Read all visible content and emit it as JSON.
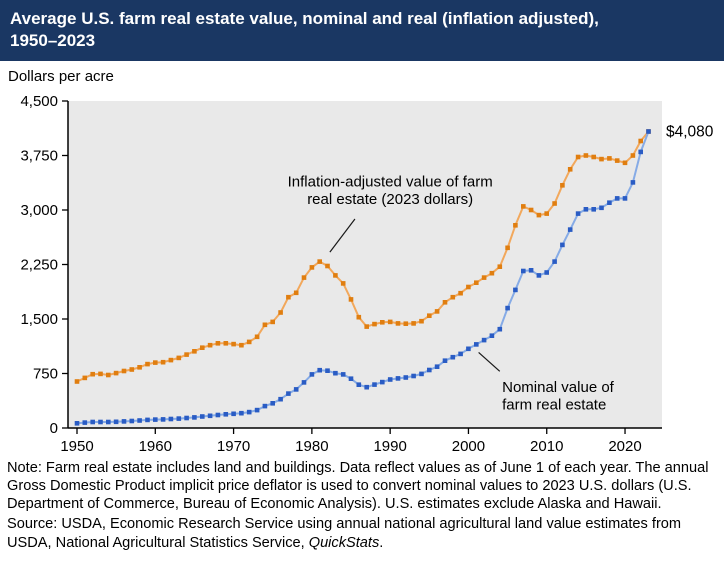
{
  "header": {
    "title": "Average U.S. farm real estate value, nominal and real (inflation adjusted), 1950–2023"
  },
  "units_label": "Dollars per acre",
  "chart_data": {
    "type": "line",
    "title": "Average U.S. farm real estate value, nominal and real (inflation adjusted), 1950–2023",
    "ylabel": "Dollars per acre",
    "ylim": [
      0,
      4500
    ],
    "ytick_values": [
      0,
      750,
      1500,
      2250,
      3000,
      3750,
      4500
    ],
    "ytick_labels": [
      "0",
      "750",
      "1,500",
      "2,250",
      "3,000",
      "3,750",
      "4,500"
    ],
    "xticks": [
      1950,
      1960,
      1970,
      1980,
      1990,
      2000,
      2010,
      2020
    ],
    "grid": false,
    "legend_position": "none (in-plot annotations)",
    "plot_bg": "#e9e9e9",
    "axis_color": "#000000",
    "years": [
      1950,
      1951,
      1952,
      1953,
      1954,
      1955,
      1956,
      1957,
      1958,
      1959,
      1960,
      1961,
      1962,
      1963,
      1964,
      1965,
      1966,
      1967,
      1968,
      1969,
      1970,
      1971,
      1972,
      1973,
      1974,
      1975,
      1976,
      1977,
      1978,
      1979,
      1980,
      1981,
      1982,
      1983,
      1984,
      1985,
      1986,
      1987,
      1988,
      1989,
      1990,
      1991,
      1992,
      1993,
      1994,
      1995,
      1996,
      1997,
      1998,
      1999,
      2000,
      2001,
      2002,
      2003,
      2004,
      2005,
      2006,
      2007,
      2008,
      2009,
      2010,
      2011,
      2012,
      2013,
      2014,
      2015,
      2016,
      2017,
      2018,
      2019,
      2020,
      2021,
      2022,
      2023
    ],
    "series": [
      {
        "name": "Inflation-adjusted value of farm real estate (2023 dollars)",
        "color_line": "#f2a85c",
        "color_marker": "#e07e10",
        "values": [
          640,
          690,
          740,
          745,
          730,
          755,
          785,
          805,
          835,
          880,
          900,
          905,
          935,
          965,
          1010,
          1055,
          1105,
          1140,
          1165,
          1165,
          1155,
          1140,
          1185,
          1255,
          1420,
          1460,
          1590,
          1800,
          1860,
          2070,
          2210,
          2290,
          2230,
          2100,
          1990,
          1770,
          1525,
          1395,
          1430,
          1455,
          1460,
          1440,
          1435,
          1440,
          1470,
          1545,
          1605,
          1730,
          1800,
          1855,
          1940,
          2000,
          2070,
          2130,
          2220,
          2480,
          2790,
          3050,
          3000,
          2930,
          2950,
          3090,
          3340,
          3560,
          3730,
          3750,
          3730,
          3700,
          3710,
          3680,
          3650,
          3750,
          3950,
          4080
        ]
      },
      {
        "name": "Nominal value of farm real estate",
        "color_line": "#86abe6",
        "color_marker": "#2a5cc4",
        "values": [
          65,
          75,
          82,
          83,
          82,
          85,
          91,
          97,
          103,
          111,
          116,
          118,
          124,
          130,
          138,
          146,
          158,
          168,
          179,
          188,
          196,
          204,
          219,
          246,
          302,
          340,
          397,
          474,
          531,
          628,
          737,
          795,
          788,
          754,
          738,
          679,
          596,
          562,
          597,
          632,
          668,
          682,
          695,
          715,
          744,
          798,
          844,
          926,
          974,
          1020,
          1090,
          1150,
          1210,
          1270,
          1360,
          1650,
          1900,
          2160,
          2170,
          2100,
          2140,
          2290,
          2520,
          2730,
          2950,
          3010,
          3010,
          3030,
          3100,
          3160,
          3160,
          3380,
          3800,
          4080
        ]
      }
    ],
    "end_label": {
      "text": "$4,080",
      "year": 2023,
      "value": 4080
    },
    "annotations": [
      {
        "lines": [
          "Inflation-adjusted value of farm",
          "real estate (2023 dollars)"
        ],
        "x": 1990,
        "y": 3320,
        "align": "middle",
        "leader": {
          "from": [
            1985.5,
            2876
          ],
          "to": [
            1982.3,
            2420
          ]
        }
      },
      {
        "lines": [
          "Nominal value of",
          "farm real estate"
        ],
        "x": 2004.3,
        "y": 495,
        "align": "start",
        "leader": {
          "from": [
            2004.0,
            780
          ],
          "to": [
            2001.3,
            1040
          ]
        }
      }
    ]
  },
  "note": {
    "body": "Note: Farm real estate includes land and buildings. Data reflect values as of June 1 of each year. The annual Gross Domestic Product implicit price deflator is used to convert nominal values to 2023 U.S. dollars (U.S. Department of Commerce, Bureau of Economic Analysis). U.S. estimates exclude Alaska and Hawaii.",
    "source_prefix": "Source: USDA, Economic Research Service using annual national agricultural land value estimates from USDA, National Agricultural Statistics Service, ",
    "source_italic": "QuickStats",
    "source_suffix": "."
  }
}
